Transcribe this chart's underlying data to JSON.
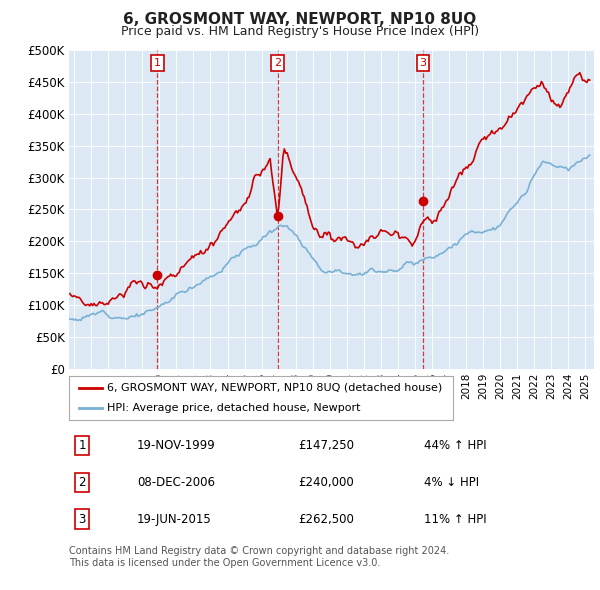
{
  "title": "6, GROSMONT WAY, NEWPORT, NP10 8UQ",
  "subtitle": "Price paid vs. HM Land Registry's House Price Index (HPI)",
  "legend_entries": [
    "6, GROSMONT WAY, NEWPORT, NP10 8UQ (detached house)",
    "HPI: Average price, detached house, Newport"
  ],
  "sale_color": "#cc0000",
  "hpi_color": "#7ab0d4",
  "plot_bg": "#dce9f5",
  "ylim": [
    0,
    500000
  ],
  "yticks": [
    0,
    50000,
    100000,
    150000,
    200000,
    250000,
    300000,
    350000,
    400000,
    450000,
    500000
  ],
  "ytick_labels": [
    "£0",
    "£50K",
    "£100K",
    "£150K",
    "£200K",
    "£250K",
    "£300K",
    "£350K",
    "£400K",
    "£450K",
    "£500K"
  ],
  "trans_dates": [
    1999.878,
    2006.936,
    2015.464
  ],
  "trans_prices": [
    147250,
    240000,
    262500
  ],
  "trans_labels": [
    "1",
    "2",
    "3"
  ],
  "table_rows": [
    [
      "1",
      "19-NOV-1999",
      "£147,250",
      "44% ↑ HPI"
    ],
    [
      "2",
      "08-DEC-2006",
      "£240,000",
      "4% ↓ HPI"
    ],
    [
      "3",
      "19-JUN-2015",
      "£262,500",
      "11% ↑ HPI"
    ]
  ],
  "footnote1": "Contains HM Land Registry data © Crown copyright and database right 2024.",
  "footnote2": "This data is licensed under the Open Government Licence v3.0.",
  "xlim": [
    1994.7,
    2025.5
  ]
}
